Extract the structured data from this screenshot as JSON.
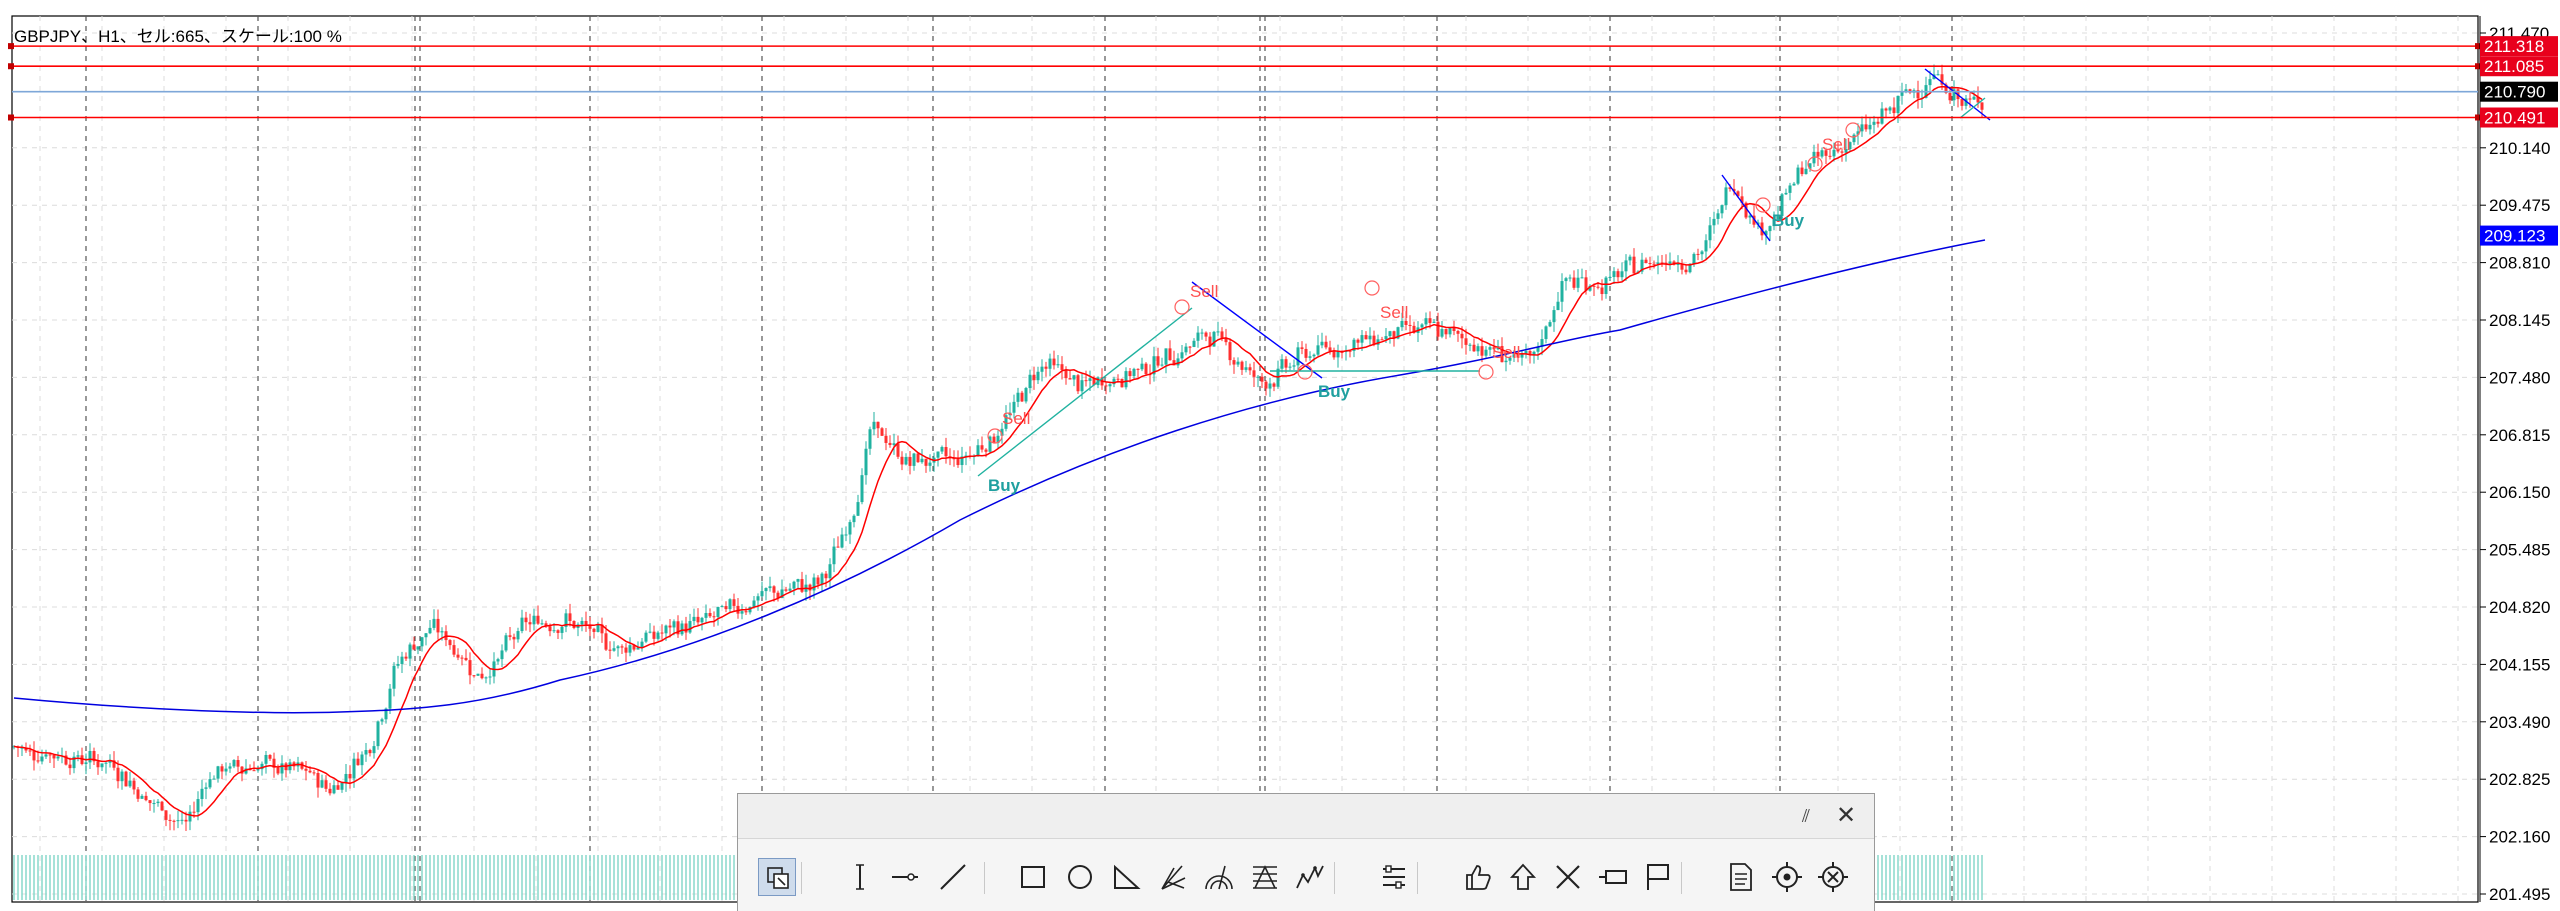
{
  "chart_info": "GBPJPY、H1、セル:665、スケール:100 %",
  "price_axis": {
    "labels": [
      "211.470",
      "210.140",
      "209.475",
      "208.810",
      "208.145",
      "207.480",
      "206.815",
      "206.150",
      "205.485",
      "204.820",
      "204.155",
      "203.490",
      "202.825",
      "202.160",
      "201.495"
    ]
  },
  "horizontal_levels": [
    {
      "price": "211.318",
      "color": "#ff0000",
      "label_bg": "#e8001c"
    },
    {
      "price": "211.085",
      "color": "#ff0000",
      "label_bg": "#e8001c"
    },
    {
      "price": "210.790",
      "color": "#7ea7d8",
      "label_bg": "#000000"
    },
    {
      "price": "210.491",
      "color": "#ff0000",
      "label_bg": "#e8001c"
    }
  ],
  "ma_label": {
    "price": "209.123",
    "label_bg": "#0000ff"
  },
  "signals": [
    {
      "text": "Sell",
      "type": "sell"
    },
    {
      "text": "Buy",
      "type": "buy"
    },
    {
      "text": "Sell",
      "type": "sell"
    },
    {
      "text": "Buy",
      "type": "buy"
    },
    {
      "text": "Sell",
      "type": "sell"
    },
    {
      "text": "Sell",
      "type": "sell"
    },
    {
      "text": "Buy",
      "type": "buy"
    },
    {
      "text": "Sell",
      "type": "sell"
    }
  ],
  "colors": {
    "bull_candle": "#20b2a0",
    "bear_candle": "#ff3030",
    "fast_ma": "#ff0000",
    "slow_ma": "#0000e0",
    "grid": "#dcdcdc",
    "buy_text": "#20a0a0",
    "sell_text": "#ff5050"
  },
  "toolbar": {
    "tools": [
      {
        "name": "crosshair-select-tool-icon",
        "active": true
      },
      {
        "name": "vertical-line-tool-icon"
      },
      {
        "name": "horizontal-line-tool-icon"
      },
      {
        "name": "trend-line-tool-icon"
      },
      {
        "name": "rectangle-tool-icon"
      },
      {
        "name": "ellipse-tool-icon"
      },
      {
        "name": "triangle-tool-icon"
      },
      {
        "name": "andrews-pitchfork-tool-icon"
      },
      {
        "name": "fibonacci-arc-tool-icon"
      },
      {
        "name": "fibonacci-fan-tool-icon"
      },
      {
        "name": "wave-pattern-tool-icon"
      },
      {
        "name": "indicator-list-tool-icon"
      },
      {
        "name": "thumbs-up-tool-icon"
      },
      {
        "name": "arrow-up-tool-icon"
      },
      {
        "name": "cross-tool-icon"
      },
      {
        "name": "price-label-tool-icon"
      },
      {
        "name": "flag-tool-icon"
      },
      {
        "name": "text-note-tool-icon"
      },
      {
        "name": "target-tool-icon"
      },
      {
        "name": "delete-drawings-tool-icon"
      }
    ]
  }
}
